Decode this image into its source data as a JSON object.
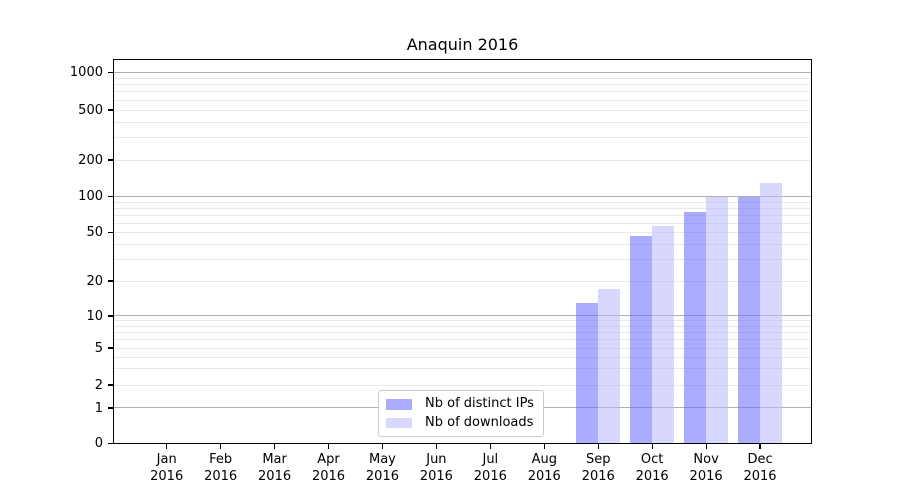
{
  "chart_data": {
    "type": "bar",
    "title": "Anaquin 2016",
    "x_categories": [
      {
        "month": "Jan",
        "year": "2016"
      },
      {
        "month": "Feb",
        "year": "2016"
      },
      {
        "month": "Mar",
        "year": "2016"
      },
      {
        "month": "Apr",
        "year": "2016"
      },
      {
        "month": "May",
        "year": "2016"
      },
      {
        "month": "Jun",
        "year": "2016"
      },
      {
        "month": "Jul",
        "year": "2016"
      },
      {
        "month": "Aug",
        "year": "2016"
      },
      {
        "month": "Sep",
        "year": "2016"
      },
      {
        "month": "Oct",
        "year": "2016"
      },
      {
        "month": "Nov",
        "year": "2016"
      },
      {
        "month": "Dec",
        "year": "2016"
      }
    ],
    "series": [
      {
        "name": "Nb of distinct IPs",
        "color": "#6666ff",
        "alpha": 0.55,
        "values": [
          null,
          null,
          null,
          null,
          null,
          null,
          null,
          null,
          13,
          47,
          75,
          100
        ]
      },
      {
        "name": "Nb of downloads",
        "color": "#b8b8ff",
        "alpha": 0.55,
        "values": [
          null,
          null,
          null,
          null,
          null,
          null,
          null,
          null,
          17,
          57,
          100,
          130
        ]
      }
    ],
    "y_axis": {
      "scale": "symlog",
      "ticks": [
        0,
        1,
        2,
        5,
        10,
        20,
        50,
        100,
        200,
        500,
        1000
      ],
      "minor_gridlines": [
        3,
        4,
        6,
        7,
        8,
        9,
        30,
        40,
        60,
        70,
        80,
        90,
        300,
        400,
        600,
        700,
        800,
        900
      ],
      "major_gridline_values": [
        1,
        10,
        100,
        1000
      ]
    },
    "legend": {
      "position": "lower center",
      "entries": [
        "Nb of distinct IPs",
        "Nb of downloads"
      ]
    },
    "grid": {
      "major": true,
      "minor": true
    }
  },
  "palette": {
    "grid_major": "#b0b0b0",
    "grid_minor": "#e9e9e9",
    "spine": "#000000",
    "text": "#000000",
    "legend_border": "#cccccc",
    "background": "#ffffff"
  }
}
